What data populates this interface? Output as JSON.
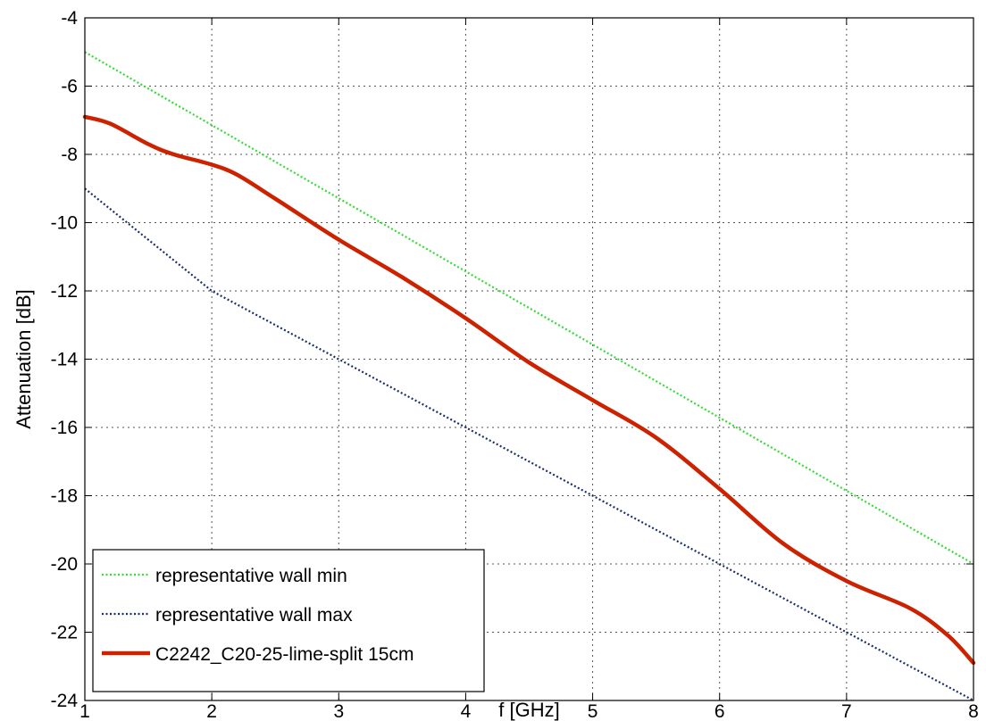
{
  "chart_data": {
    "type": "line",
    "xlabel": "f [GHz]",
    "ylabel": "Attenuation [dB]",
    "xlim": [
      1,
      8
    ],
    "ylim": [
      -24,
      -4
    ],
    "xticks": [
      1,
      2,
      3,
      4,
      5,
      6,
      7,
      8
    ],
    "yticks": [
      -24,
      -22,
      -20,
      -18,
      -16,
      -14,
      -12,
      -10,
      -8,
      -6,
      -4
    ],
    "grid": true,
    "legend_position": "bottom-left",
    "series": [
      {
        "name": "representative wall min",
        "color": "#33dd33",
        "style": "dotted",
        "x": [
          1,
          8
        ],
        "y": [
          -5,
          -20
        ]
      },
      {
        "name": "representative wall max",
        "color": "#1a2e6e",
        "style": "dotted",
        "x": [
          1,
          2,
          8
        ],
        "y": [
          -9,
          -12,
          -24
        ]
      },
      {
        "name": "C2242_C20-25-lime-split 15cm",
        "color": "#cc2200",
        "style": "solid",
        "x": [
          1.0,
          1.2,
          1.5,
          1.7,
          2.0,
          2.2,
          2.5,
          3.0,
          3.5,
          4.0,
          4.5,
          5.0,
          5.5,
          6.0,
          6.5,
          7.0,
          7.5,
          7.8,
          8.0
        ],
        "y": [
          -6.9,
          -7.1,
          -7.7,
          -8.0,
          -8.3,
          -8.6,
          -9.3,
          -10.5,
          -11.6,
          -12.8,
          -14.1,
          -15.2,
          -16.3,
          -17.8,
          -19.4,
          -20.5,
          -21.3,
          -22.1,
          -22.9
        ]
      }
    ]
  }
}
